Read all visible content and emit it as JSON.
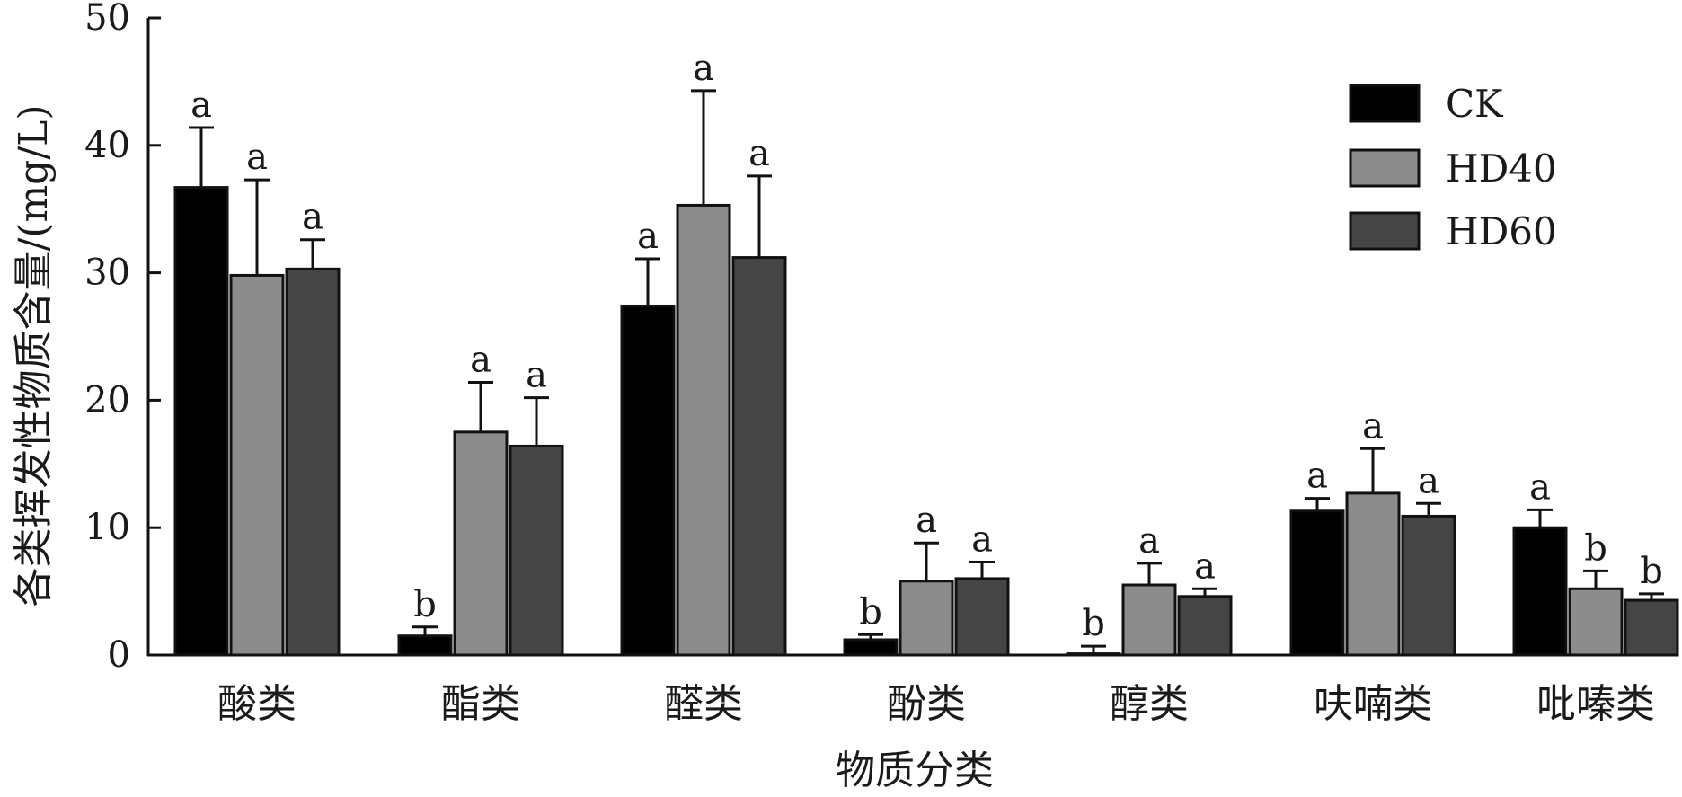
{
  "chart_data": {
    "type": "bar",
    "xlabel": "物质分类",
    "ylabel": "各类挥发性物质含量/(mg/L)",
    "ylim": [
      0,
      50
    ],
    "yticks": [
      0,
      10,
      20,
      30,
      40,
      50
    ],
    "categories": [
      "酸类",
      "酯类",
      "醛类",
      "酚类",
      "醇类",
      "呋喃类",
      "吡嗪类"
    ],
    "legend_position": "top-right",
    "series": [
      {
        "name": "CK",
        "color": "#000000",
        "values": [
          36.7,
          1.5,
          27.4,
          1.2,
          0.1,
          11.3,
          10.0
        ],
        "errors": [
          4.7,
          0.7,
          3.7,
          0.4,
          0.6,
          1.0,
          1.4
        ],
        "letters": [
          "a",
          "b",
          "a",
          "b",
          "b",
          "a",
          "a"
        ]
      },
      {
        "name": "HD40",
        "color": "#8c8c8c",
        "values": [
          29.8,
          17.5,
          35.3,
          5.8,
          5.5,
          12.7,
          5.2
        ],
        "errors": [
          7.5,
          3.9,
          9.0,
          3.0,
          1.7,
          3.5,
          1.4
        ],
        "letters": [
          "a",
          "a",
          "a",
          "a",
          "a",
          "a",
          "b"
        ]
      },
      {
        "name": "HD60",
        "color": "#454545",
        "values": [
          30.3,
          16.4,
          31.2,
          6.0,
          4.6,
          10.9,
          4.3
        ],
        "errors": [
          2.3,
          3.8,
          6.4,
          1.3,
          0.6,
          1.0,
          0.5
        ],
        "letters": [
          "a",
          "a",
          "a",
          "a",
          "a",
          "a",
          "b"
        ]
      }
    ]
  }
}
